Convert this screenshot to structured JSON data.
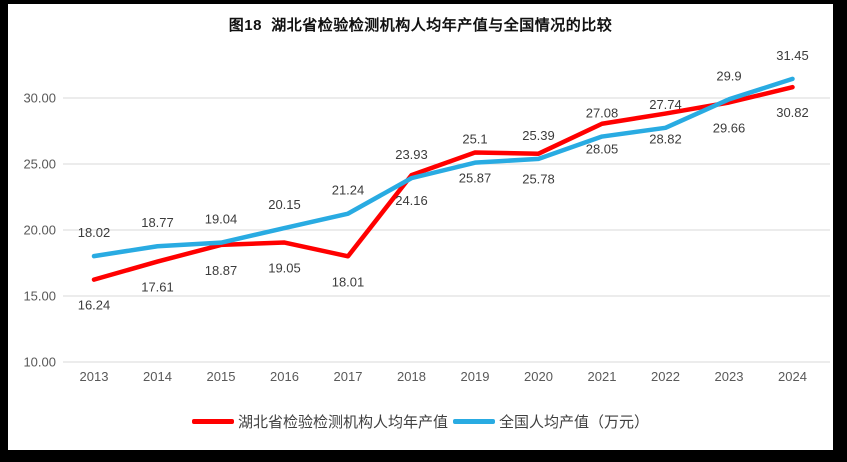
{
  "window": {
    "border_color": "#000000",
    "canvas_background": "#ffffff"
  },
  "chart_data": {
    "type": "line",
    "title": "图18  湖北省检验检测机构人均年产值与全国情况的比较",
    "categories": [
      "2013",
      "2014",
      "2015",
      "2016",
      "2017",
      "2018",
      "2019",
      "2020",
      "2021",
      "2022",
      "2023",
      "2024"
    ],
    "series": [
      {
        "name": "湖北省检验检测机构人均年产值",
        "color": "#FF0000",
        "values": [
          16.24,
          17.61,
          18.87,
          19.05,
          18.01,
          24.16,
          25.87,
          25.78,
          28.05,
          28.82,
          29.66,
          30.82
        ],
        "label_position": "below"
      },
      {
        "name": "全国人均产值（万元）",
        "color": "#29ABE2",
        "values": [
          18.02,
          18.77,
          19.04,
          20.15,
          21.24,
          23.93,
          25.1,
          25.39,
          27.08,
          27.74,
          29.9,
          31.45
        ],
        "label_position": "above"
      }
    ],
    "y_axis": {
      "min": 10,
      "max": 32.5,
      "ticks": [
        {
          "value": 30,
          "label": "30.00"
        },
        {
          "value": 25,
          "label": "25.00"
        },
        {
          "value": 20,
          "label": "20.00"
        },
        {
          "value": 15,
          "label": "15.00"
        },
        {
          "value": 10,
          "label": "10.00"
        }
      ],
      "grid": true,
      "gridline_color": "#D9D9D9",
      "tick_color": "#595959"
    },
    "x_axis": {
      "tick_color": "#595959"
    },
    "data_label_color": "#3C3C3C",
    "legend_position": "bottom"
  }
}
